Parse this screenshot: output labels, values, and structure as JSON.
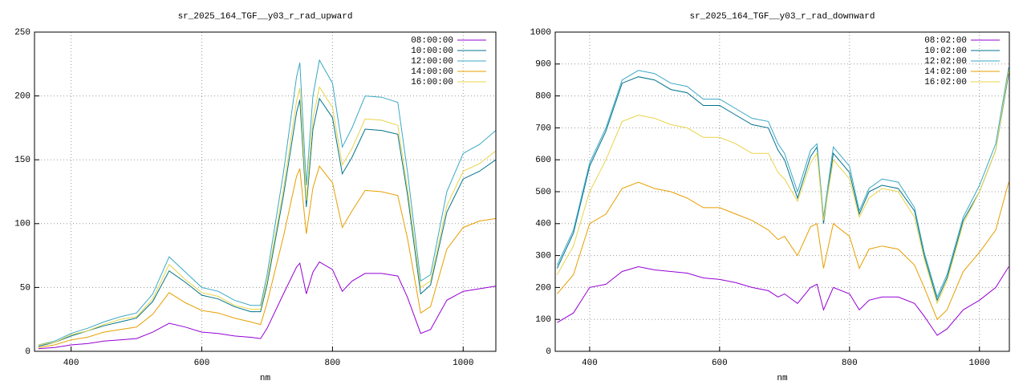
{
  "chart_data": [
    {
      "type": "line",
      "title": "sr_2025_164_TGF__y03_r_rad_upward",
      "xlabel": "nm",
      "x": [
        350,
        375,
        400,
        425,
        450,
        475,
        500,
        525,
        550,
        575,
        600,
        625,
        650,
        675,
        690,
        700,
        725,
        745,
        750,
        760,
        770,
        780,
        800,
        815,
        830,
        850,
        875,
        900,
        915,
        935,
        950,
        975,
        1000,
        1025,
        1050
      ],
      "xlim": [
        344,
        1050
      ],
      "xticks": [
        400,
        600,
        800,
        1000
      ],
      "ylim": [
        0,
        250
      ],
      "yticks": [
        0,
        50,
        100,
        150,
        200,
        250
      ],
      "grid": true,
      "legend": "top-right",
      "series": [
        {
          "name": "08:00:00",
          "color": "#9400d3",
          "values": [
            2,
            3,
            5,
            6,
            8,
            9,
            10,
            15,
            22,
            19,
            15,
            14,
            12,
            11,
            10,
            18,
            45,
            66,
            69,
            45,
            62,
            70,
            64,
            47,
            55,
            61,
            61,
            59,
            42,
            14,
            17,
            40,
            47,
            49,
            51
          ]
        },
        {
          "name": "10:00:00",
          "color": "#00738a",
          "values": [
            4,
            7,
            12,
            16,
            20,
            23,
            26,
            39,
            63,
            54,
            44,
            41,
            35,
            31,
            31,
            52,
            122,
            187,
            197,
            113,
            174,
            198,
            183,
            139,
            152,
            174,
            173,
            170,
            122,
            45,
            52,
            109,
            135,
            141,
            150
          ]
        },
        {
          "name": "12:00:00",
          "color": "#3aa8c4",
          "values": [
            5,
            8,
            14,
            18,
            23,
            27,
            30,
            45,
            74,
            62,
            50,
            47,
            40,
            36,
            36,
            60,
            140,
            215,
            226,
            130,
            200,
            228,
            210,
            160,
            175,
            200,
            199,
            195,
            140,
            55,
            60,
            125,
            155,
            162,
            173
          ]
        },
        {
          "name": "14:00:00",
          "color": "#e69f00",
          "values": [
            3,
            5,
            9,
            11,
            15,
            17,
            19,
            29,
            46,
            38,
            32,
            30,
            26,
            23,
            21,
            38,
            90,
            137,
            143,
            92,
            128,
            145,
            132,
            97,
            110,
            126,
            125,
            122,
            88,
            30,
            35,
            80,
            97,
            102,
            104
          ]
        },
        {
          "name": "16:00:00",
          "color": "#e8d44a",
          "values": [
            5,
            7,
            13,
            16,
            21,
            25,
            27,
            41,
            68,
            56,
            46,
            43,
            36,
            33,
            33,
            55,
            127,
            196,
            206,
            118,
            182,
            207,
            191,
            146,
            159,
            182,
            181,
            177,
            127,
            50,
            55,
            114,
            141,
            147,
            157
          ]
        }
      ]
    },
    {
      "type": "line",
      "title": "sr_2025_164_TGF__y03_r_rad_downward",
      "xlabel": "nm",
      "x": [
        350,
        375,
        400,
        425,
        450,
        475,
        500,
        525,
        550,
        575,
        600,
        625,
        650,
        675,
        690,
        700,
        720,
        740,
        750,
        760,
        775,
        800,
        815,
        830,
        850,
        875,
        900,
        915,
        935,
        950,
        975,
        1000,
        1025,
        1045
      ],
      "xlim": [
        347,
        1046
      ],
      "xticks": [
        400,
        600,
        800,
        1000
      ],
      "ylim": [
        0,
        1000
      ],
      "yticks": [
        0,
        100,
        200,
        300,
        400,
        500,
        600,
        700,
        800,
        900,
        1000
      ],
      "grid": true,
      "legend": "top-right",
      "series": [
        {
          "name": "08:02:00",
          "color": "#9400d3",
          "values": [
            90,
            120,
            200,
            210,
            250,
            265,
            255,
            250,
            245,
            230,
            225,
            215,
            200,
            190,
            170,
            180,
            150,
            200,
            210,
            130,
            200,
            180,
            130,
            160,
            170,
            170,
            150,
            110,
            50,
            70,
            130,
            160,
            200,
            265
          ]
        },
        {
          "name": "10:02:00",
          "color": "#00738a",
          "values": [
            260,
            370,
            580,
            690,
            840,
            860,
            850,
            820,
            810,
            770,
            770,
            740,
            710,
            700,
            630,
            600,
            480,
            610,
            640,
            400,
            620,
            560,
            430,
            500,
            520,
            510,
            440,
            300,
            160,
            230,
            410,
            500,
            630,
            870
          ]
        },
        {
          "name": "12:02:00",
          "color": "#3aa8c4",
          "values": [
            270,
            380,
            590,
            700,
            850,
            880,
            870,
            840,
            830,
            790,
            790,
            760,
            730,
            720,
            650,
            620,
            500,
            630,
            650,
            420,
            640,
            580,
            440,
            510,
            540,
            530,
            450,
            310,
            170,
            240,
            420,
            520,
            650,
            890
          ]
        },
        {
          "name": "14:02:00",
          "color": "#e69f00",
          "values": [
            180,
            240,
            400,
            430,
            510,
            530,
            510,
            500,
            480,
            450,
            450,
            430,
            410,
            380,
            350,
            360,
            300,
            390,
            400,
            260,
            400,
            360,
            260,
            320,
            330,
            320,
            270,
            200,
            100,
            130,
            250,
            310,
            380,
            530
          ]
        },
        {
          "name": "16:02:00",
          "color": "#e8d44a",
          "values": [
            240,
            330,
            500,
            600,
            720,
            740,
            730,
            710,
            700,
            670,
            670,
            650,
            620,
            620,
            560,
            540,
            470,
            590,
            620,
            410,
            600,
            540,
            420,
            480,
            510,
            500,
            420,
            290,
            150,
            220,
            400,
            500,
            630,
            880
          ]
        }
      ]
    }
  ]
}
